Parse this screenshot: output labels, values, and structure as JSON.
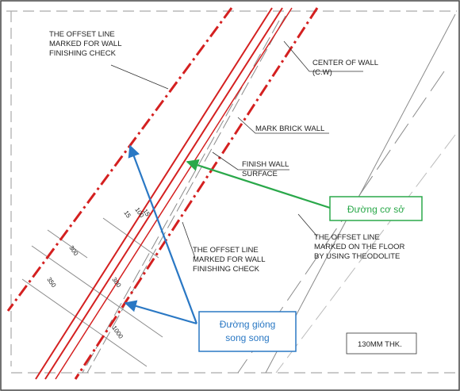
{
  "labels": {
    "offset_line_top": [
      "THE OFFSET LINE",
      "MARKED FOR WALL",
      "FINISHING CHECK"
    ],
    "center_of_wall": [
      "CENTER OF WALL",
      "(C.W)"
    ],
    "mark_brick_wall": "MARK BRICK WALL",
    "finish_wall_surface": [
      "FINISH WALL",
      "SURFACE"
    ],
    "offset_line_bottom": [
      "THE OFFSET LINE",
      "MARKED FOR WALL",
      "FINISHING CHECK"
    ],
    "offset_line_floor": [
      "THE OFFSET LINE",
      "MARKED ON THE FLOOR",
      "BY USING THEODOLITE"
    ],
    "thickness": "130MM THK."
  },
  "dimensions": {
    "d15": "15",
    "d100": "100",
    "d15b": "15",
    "d300a": "300",
    "d350": "350",
    "d300b": "300",
    "d1000": "1000"
  },
  "annotations": {
    "baseline": "Đường cơ sở",
    "parallel": [
      "Đường gióng",
      "song song"
    ]
  },
  "colors": {
    "wall_red": "#d42020",
    "baseline_green": "#2aa84a",
    "parallel_blue": "#2a78c4",
    "gray": "#8a8a8a"
  }
}
